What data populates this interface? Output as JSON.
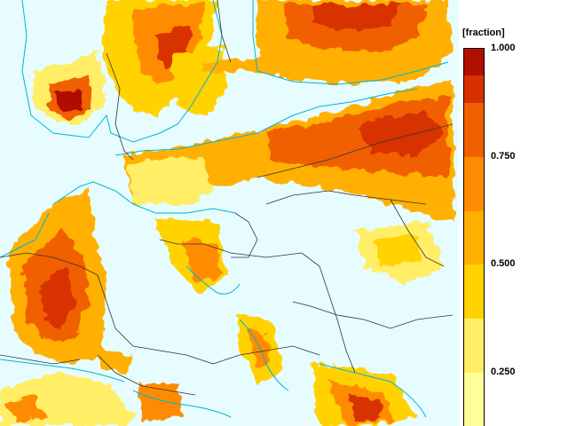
{
  "legend": {
    "title": "[fraction]",
    "tick_labels": [
      {
        "value": 1.0,
        "label": "1.000"
      },
      {
        "value": 0.75,
        "label": "0.750"
      },
      {
        "value": 0.5,
        "label": "0.500"
      },
      {
        "value": 0.25,
        "label": "0.250"
      }
    ],
    "range": [
      0.125,
      1.0
    ],
    "classes": [
      {
        "from": 0.125,
        "to": 0.25,
        "color": "#ffff99"
      },
      {
        "from": 0.25,
        "to": 0.375,
        "color": "#ffee66"
      },
      {
        "from": 0.375,
        "to": 0.5,
        "color": "#ffd200"
      },
      {
        "from": 0.5,
        "to": 0.625,
        "color": "#ffb000"
      },
      {
        "from": 0.625,
        "to": 0.75,
        "color": "#ff8c00"
      },
      {
        "from": 0.75,
        "to": 0.875,
        "color": "#f06000"
      },
      {
        "from": 0.875,
        "to": 0.9375,
        "color": "#d83000"
      },
      {
        "from": 0.9375,
        "to": 1.0,
        "color": "#b01000"
      }
    ]
  },
  "map": {
    "background_color": "#e6fcff",
    "coastline_color": "#00b4d8",
    "border_color": "#333333"
  }
}
